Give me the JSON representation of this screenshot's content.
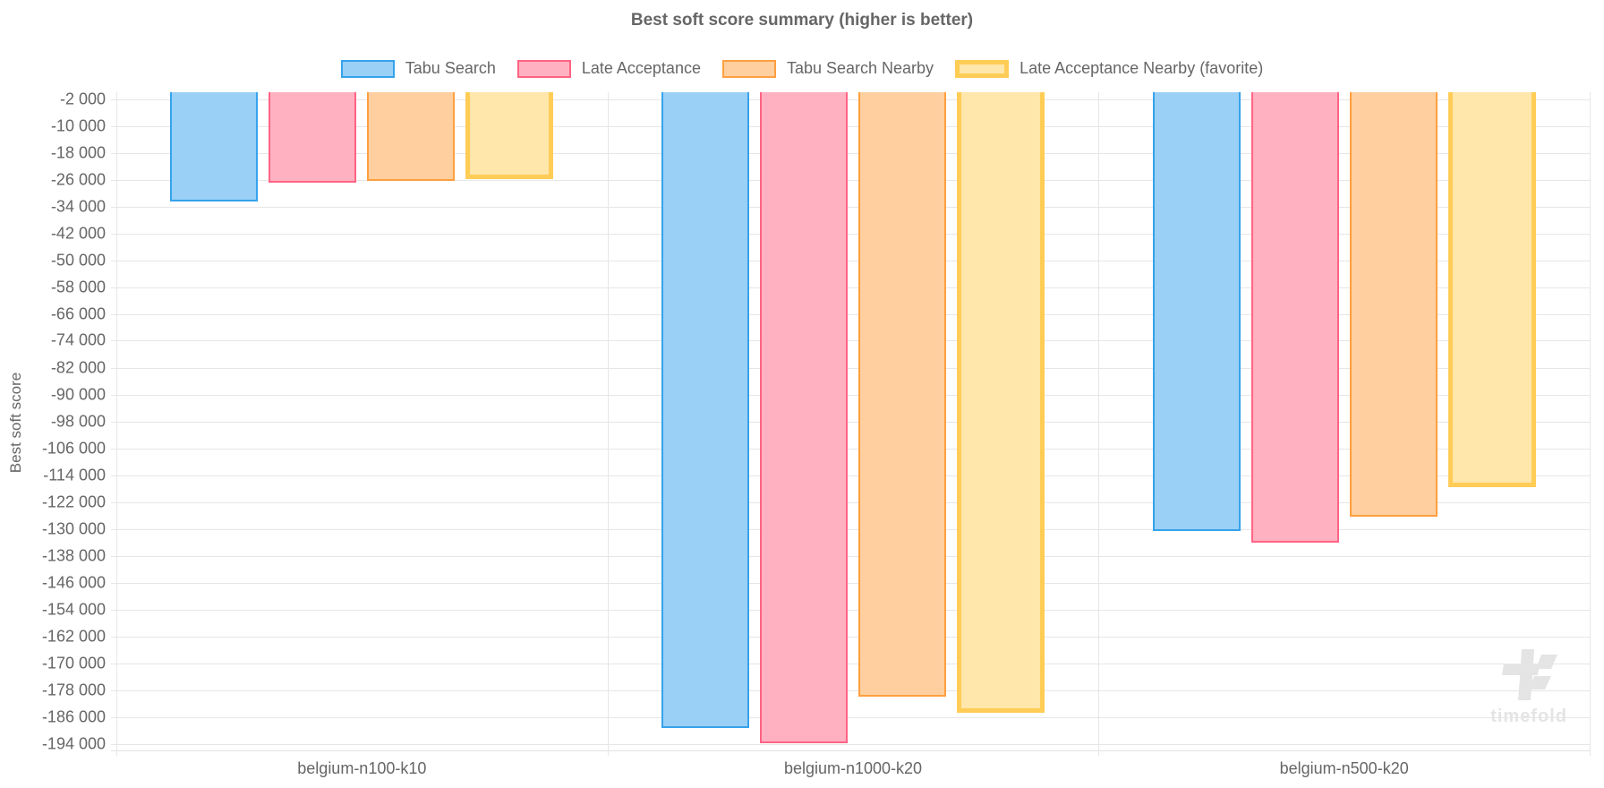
{
  "chart_data": {
    "type": "bar",
    "title": "Best soft score summary (higher is better)",
    "ylabel": "Best soft score",
    "legend_position": "top",
    "grid": true,
    "categories": [
      "belgium-n100-k10",
      "belgium-n1000-k20",
      "belgium-n500-k20"
    ],
    "series": [
      {
        "name": "Tabu Search",
        "fill": "#9ad0f5",
        "border": "#36a2eb",
        "border_width": 2,
        "values": [
          -32400,
          -189400,
          -130700
        ]
      },
      {
        "name": "Late Acceptance",
        "fill": "#ffb1c1",
        "border": "#ff6384",
        "border_width": 2,
        "values": [
          -26900,
          -193900,
          -134100
        ]
      },
      {
        "name": "Tabu Search Nearby",
        "fill": "#ffcf9f",
        "border": "#ff9f40",
        "border_width": 2,
        "values": [
          -26300,
          -179900,
          -126500
        ]
      },
      {
        "name": "Late Acceptance Nearby (favorite)",
        "fill": "#ffe6aa",
        "border": "#ffcd56",
        "border_width": 5,
        "values": [
          -25800,
          -184800,
          -117600
        ]
      }
    ],
    "y_axis": {
      "min": -196000,
      "max": 0,
      "first_tick": -2000,
      "last_tick": -194000,
      "tick_step": 8000,
      "tick_label_format": "space-thousands"
    },
    "watermark": "timefold"
  },
  "colors": {
    "text": "#666666",
    "grid": "#e6e6e6",
    "watermark": "#e4e4e4"
  }
}
